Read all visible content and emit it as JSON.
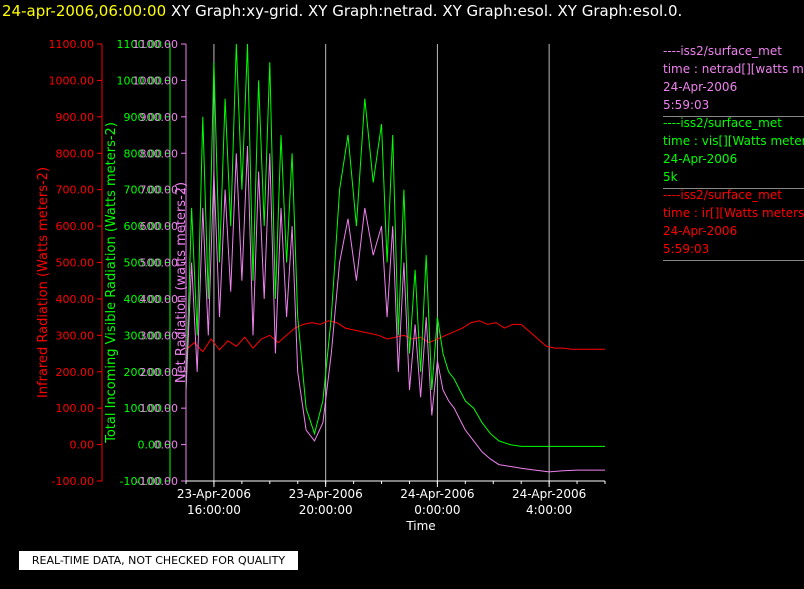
{
  "header": {
    "date": "24-apr-2006,06:00:00",
    "titles": "XY Graph:xy-grid.  XY Graph:netrad.  XY Graph:esol.  XY Graph:esol.0."
  },
  "legend": [
    {
      "line1": "----iss2/surface_met",
      "line2": "time : netrad[][watts meters-2]",
      "line3": "24-Apr-2006",
      "line4": "5:59:03",
      "color": "#ee82ee"
    },
    {
      "line1": "----iss2/surface_met",
      "line2": "time : vis[][Watts meters-2]",
      "line3": "24-Apr-2006",
      "line4": "5k",
      "color": "#00ff00"
    },
    {
      "line1": "----iss2/surface_met",
      "line2": "time : ir[][Watts meters-2]",
      "line3": "24-Apr-2006",
      "line4": "5:59:03",
      "color": "#ff0000"
    }
  ],
  "notice": "REAL-TIME DATA, NOT CHECKED FOR QUALITY",
  "chart_data": {
    "type": "line",
    "xlabel": "Time",
    "x_unit": "hours since 23-Apr-2006 15:00",
    "x_range": [
      0,
      15
    ],
    "ylim": [
      -100,
      1100
    ],
    "grid": "vertical lines at major x ticks",
    "x_ticks": [
      {
        "h": 1,
        "l1": "23-Apr-2006",
        "l2": "16:00:00"
      },
      {
        "h": 5,
        "l1": "23-Apr-2006",
        "l2": "20:00:00"
      },
      {
        "h": 9,
        "l1": "24-Apr-2006",
        "l2": "0:00:00"
      },
      {
        "h": 13,
        "l1": "24-Apr-2006",
        "l2": "4:00:00"
      }
    ],
    "y_ticks": [
      "-100.00",
      "0.00",
      "100.00",
      "200.00",
      "300.00",
      "400.00",
      "500.00",
      "600.00",
      "700.00",
      "800.00",
      "900.00",
      "1000.00",
      "1100.00"
    ],
    "axes": [
      {
        "label": "Infrared Radiation (Watts meters-2)",
        "color": "#ff0000"
      },
      {
        "label": "Total Incoming Visible Radiation (Watts meters-2)",
        "color": "#00ff00"
      },
      {
        "label": "Net Radiation (watts meters-2)",
        "color": "#ee82ee"
      }
    ],
    "series": [
      {
        "name": "ir",
        "color": "#ff0000",
        "x": [
          0,
          0.3,
          0.6,
          0.9,
          1.2,
          1.5,
          1.8,
          2.1,
          2.4,
          2.7,
          3.0,
          3.3,
          3.6,
          3.9,
          4.2,
          4.5,
          4.8,
          5.1,
          5.4,
          5.7,
          6.0,
          6.3,
          6.6,
          6.9,
          7.2,
          7.5,
          7.8,
          8.1,
          8.4,
          8.7,
          9.0,
          9.3,
          9.6,
          9.9,
          10.2,
          10.5,
          10.8,
          11.1,
          11.4,
          11.7,
          12.0,
          12.3,
          12.6,
          12.9,
          13.2,
          13.5,
          13.8,
          14.1,
          14.4,
          14.7,
          15.0
        ],
        "y": [
          260,
          280,
          255,
          290,
          260,
          285,
          270,
          295,
          265,
          290,
          300,
          280,
          300,
          320,
          330,
          335,
          330,
          340,
          335,
          320,
          315,
          310,
          305,
          300,
          290,
          295,
          300,
          290,
          295,
          280,
          290,
          300,
          310,
          320,
          335,
          340,
          330,
          335,
          320,
          330,
          330,
          310,
          290,
          270,
          265,
          265,
          262,
          262,
          262,
          262,
          262
        ]
      },
      {
        "name": "vis",
        "color": "#00ff00",
        "x": [
          0,
          0.2,
          0.4,
          0.6,
          0.8,
          1.0,
          1.2,
          1.4,
          1.6,
          1.8,
          2.0,
          2.2,
          2.4,
          2.6,
          2.8,
          3.0,
          3.2,
          3.4,
          3.6,
          3.8,
          4.0,
          4.3,
          4.6,
          4.9,
          5.2,
          5.5,
          5.8,
          6.1,
          6.4,
          6.7,
          7.0,
          7.2,
          7.4,
          7.6,
          7.8,
          8.0,
          8.2,
          8.4,
          8.6,
          8.8,
          9.0,
          9.2,
          9.4,
          9.6,
          9.8,
          10.0,
          10.3,
          10.6,
          10.9,
          11.2,
          11.6,
          12.0,
          12.5,
          13.0,
          13.5,
          14.0,
          14.5,
          15.0
        ],
        "y": [
          150,
          650,
          300,
          900,
          400,
          1050,
          500,
          950,
          600,
          1100,
          700,
          1100,
          450,
          1000,
          600,
          1050,
          400,
          850,
          500,
          800,
          350,
          100,
          30,
          120,
          350,
          700,
          850,
          600,
          950,
          720,
          880,
          500,
          850,
          300,
          700,
          250,
          480,
          200,
          520,
          150,
          350,
          250,
          200,
          180,
          150,
          120,
          100,
          60,
          30,
          10,
          0,
          -5,
          -5,
          -5,
          -5,
          -5,
          -5,
          -5
        ]
      },
      {
        "name": "netrad",
        "color": "#ee82ee",
        "x": [
          0,
          0.2,
          0.4,
          0.6,
          0.8,
          1.0,
          1.2,
          1.4,
          1.6,
          1.8,
          2.0,
          2.2,
          2.4,
          2.6,
          2.8,
          3.0,
          3.2,
          3.4,
          3.6,
          3.8,
          4.0,
          4.3,
          4.6,
          4.9,
          5.2,
          5.5,
          5.8,
          6.1,
          6.4,
          6.7,
          7.0,
          7.2,
          7.4,
          7.6,
          7.8,
          8.0,
          8.2,
          8.4,
          8.6,
          8.8,
          9.0,
          9.2,
          9.4,
          9.6,
          9.8,
          10.0,
          10.3,
          10.6,
          10.9,
          11.2,
          11.6,
          12.0,
          12.5,
          13.0,
          13.5,
          14.0,
          14.5,
          15.0
        ],
        "y": [
          150,
          500,
          200,
          650,
          300,
          750,
          350,
          700,
          420,
          800,
          450,
          820,
          300,
          750,
          400,
          800,
          250,
          650,
          350,
          600,
          200,
          40,
          10,
          60,
          250,
          500,
          620,
          450,
          650,
          520,
          600,
          350,
          600,
          200,
          500,
          150,
          330,
          130,
          350,
          80,
          230,
          150,
          120,
          100,
          70,
          40,
          10,
          -20,
          -40,
          -55,
          -60,
          -65,
          -70,
          -75,
          -72,
          -70,
          -70,
          -70
        ]
      }
    ]
  }
}
